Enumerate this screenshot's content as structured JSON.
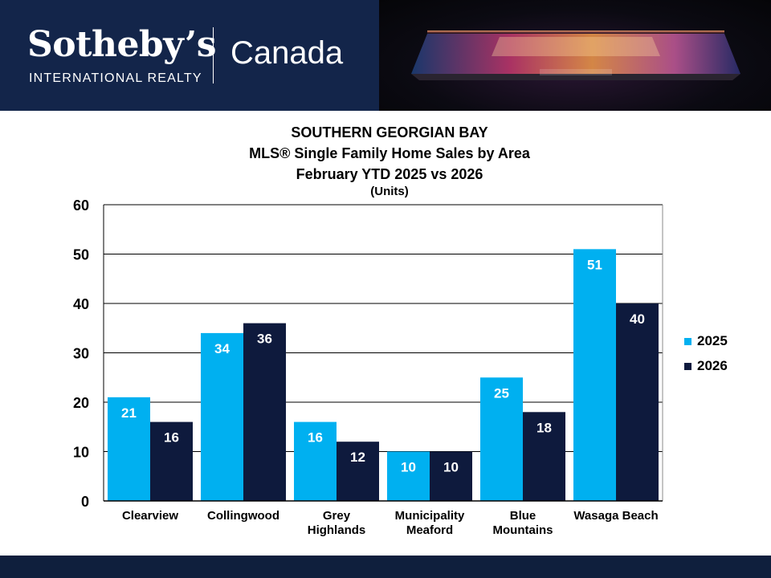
{
  "header": {
    "brand_name": "Sotheby’s",
    "brand_sub": "INTERNATIONAL REALTY",
    "region": "Canada"
  },
  "chart_data": {
    "type": "bar",
    "title": "SOUTHERN GEORGIAN BAY",
    "subtitle": "MLS® Single Family Home Sales by Area",
    "period": "February YTD 2025 vs 2026",
    "units": "(Units)",
    "categories": [
      [
        "Clearview"
      ],
      [
        "Collingwood"
      ],
      [
        "Grey",
        "Highlands"
      ],
      [
        "Municipality",
        "Meaford"
      ],
      [
        "Blue",
        "Mountains"
      ],
      [
        "Wasaga Beach"
      ]
    ],
    "series": [
      {
        "name": "2025",
        "color": "#00b0f0",
        "values": [
          21,
          34,
          16,
          10,
          25,
          51
        ]
      },
      {
        "name": "2026",
        "color": "#0e1a3d",
        "values": [
          16,
          36,
          12,
          10,
          18,
          40
        ]
      }
    ],
    "ylim": [
      0,
      60
    ],
    "yticks": [
      "0",
      "10",
      "20",
      "30",
      "40",
      "50",
      "60"
    ],
    "grid": true,
    "legend": "right"
  }
}
